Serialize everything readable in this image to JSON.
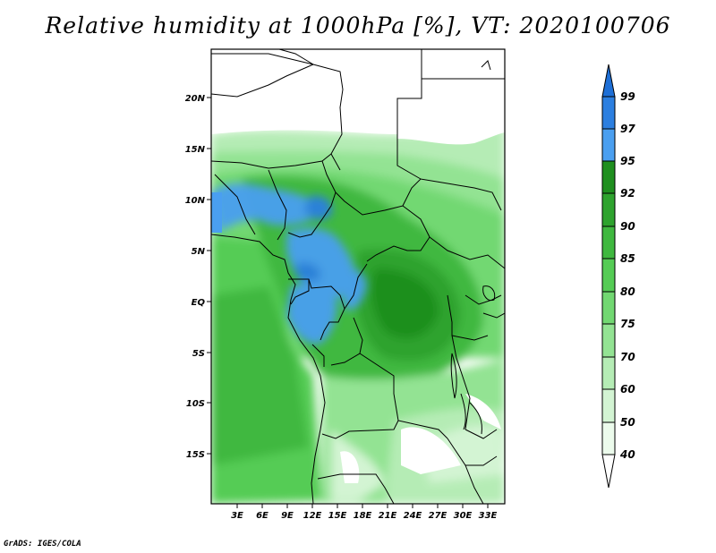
{
  "title": "Relative humidity at 1000hPa [%], VT: 2020100706",
  "credit": "GrADS: IGES/COLA",
  "map": {
    "lat_labels": [
      "20N",
      "15N",
      "10N",
      "5N",
      "EQ",
      "5S",
      "10S",
      "15S"
    ],
    "lon_labels": [
      "3E",
      "6E",
      "9E",
      "12E",
      "15E",
      "18E",
      "21E",
      "24E",
      "27E",
      "30E",
      "33E"
    ]
  },
  "colorbar": {
    "levels": [
      "99",
      "97",
      "95",
      "92",
      "90",
      "85",
      "80",
      "75",
      "70",
      "60",
      "50",
      "40"
    ],
    "colors": {
      "top_arrow": "#1e6fd6",
      "97_99": "#2c7fe0",
      "95_97": "#4a9ff0",
      "92_95": "#1f8f1f",
      "90_92": "#2ea32e",
      "85_90": "#3fb83f",
      "80_85": "#55cc55",
      "75_80": "#72d872",
      "70_75": "#93e393",
      "60_70": "#b5ecb5",
      "50_60": "#d3f4d3",
      "40_50": "#ecfbec",
      "below_40": "#ffffff"
    }
  }
}
